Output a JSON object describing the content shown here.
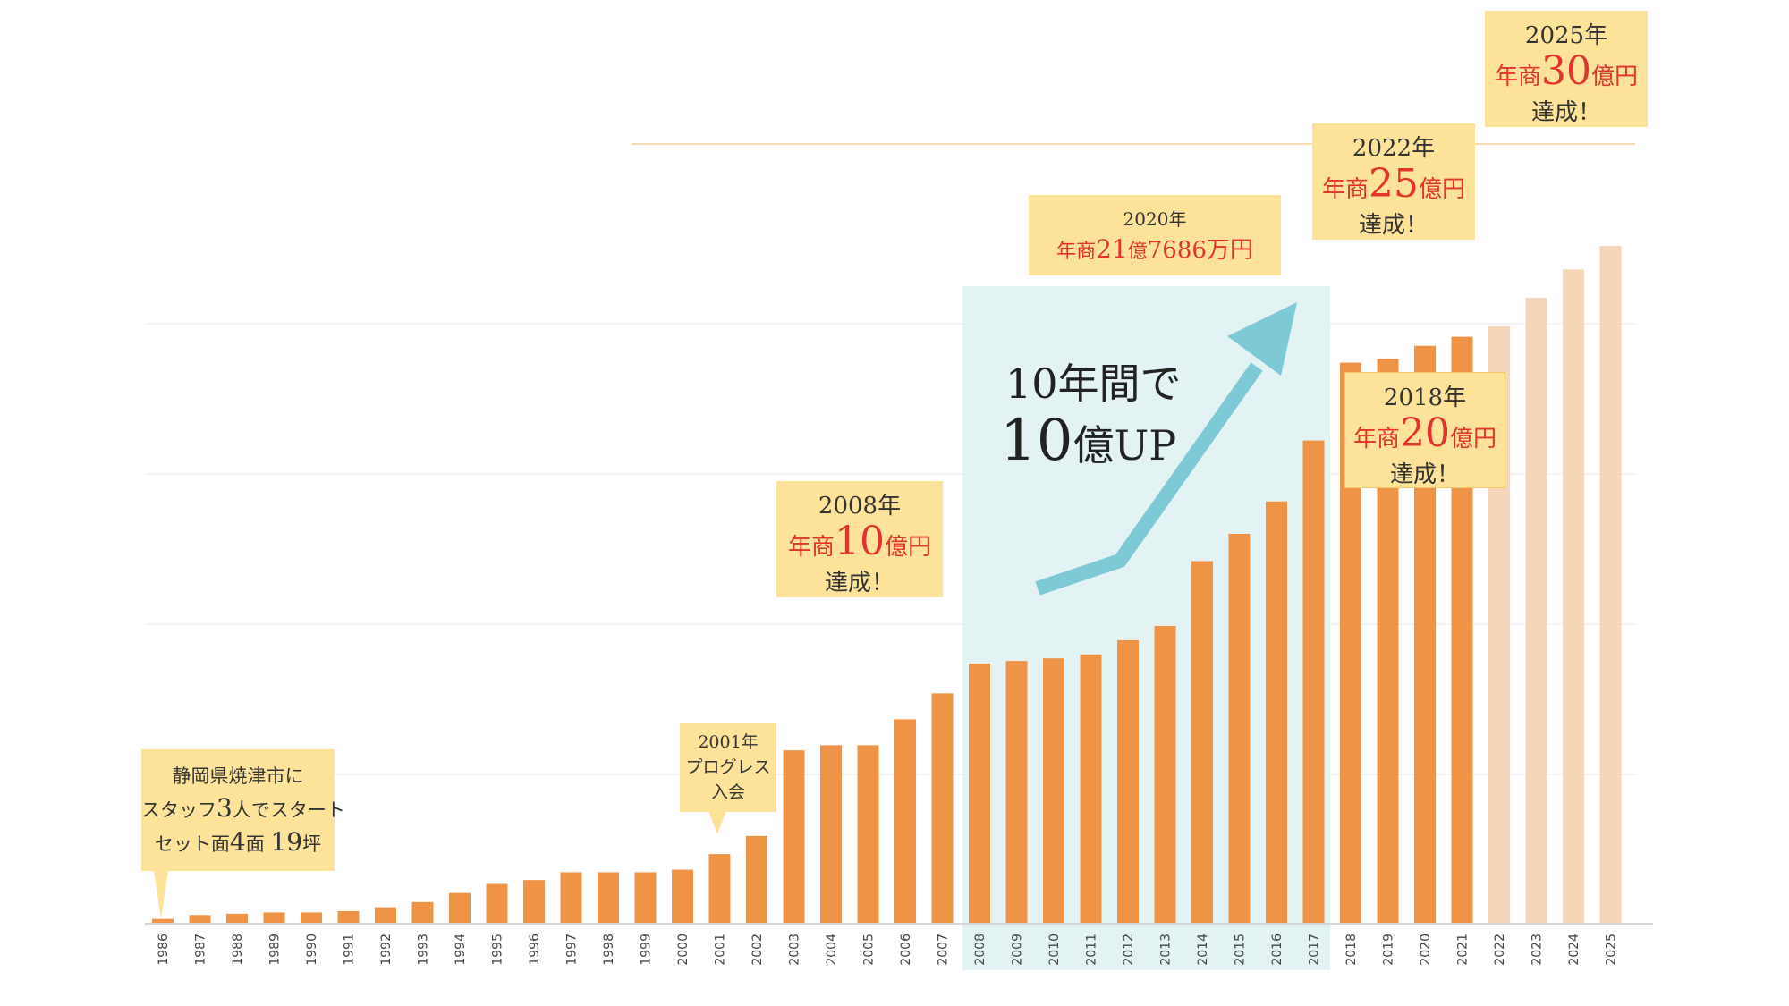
{
  "chart_data": {
    "type": "bar",
    "categories": [
      "1986",
      "1987",
      "1988",
      "1989",
      "1990",
      "1991",
      "1992",
      "1993",
      "1994",
      "1995",
      "1996",
      "1997",
      "1998",
      "1999",
      "2000",
      "2001",
      "2002",
      "2003",
      "2004",
      "2005",
      "2006",
      "2007",
      "2008",
      "2009",
      "2010",
      "2011",
      "2012",
      "2013",
      "2014",
      "2015",
      "2016",
      "2017",
      "2018",
      "2019",
      "2020",
      "2021",
      "2022",
      "2023",
      "2024",
      "2025"
    ],
    "values": [
      0.3,
      0.6,
      0.7,
      0.8,
      0.8,
      0.9,
      1.2,
      1.6,
      2.3,
      3.0,
      3.3,
      3.9,
      3.9,
      3.9,
      4.1,
      5.3,
      6.7,
      13.3,
      13.7,
      13.7,
      15.7,
      17.7,
      20.0,
      20.2,
      20.4,
      20.7,
      21.8,
      22.9,
      27.9,
      30.0,
      32.5,
      37.2,
      43.2,
      43.5,
      44.5,
      45.2,
      46.0,
      48.2,
      50.4,
      52.2
    ],
    "projected_from_index": 36,
    "highlight_range": [
      "2008",
      "2017"
    ],
    "colors": {
      "bar": "#ef9447",
      "bar_projected": "#f5d6b8",
      "highlight": "#e3f3f4",
      "arrow": "#7ec9d6",
      "callout": "#fde39a",
      "accent_text": "#e2342b",
      "grid": "#e8e8e8",
      "target_line": "#f2d29a"
    },
    "grid": true
  },
  "highlight_text": {
    "line1": "10年間で",
    "line2_num": "10",
    "line2_rest": "億UP"
  },
  "callouts": {
    "start": {
      "line1": "静岡県焼津市に",
      "line2_a": "スタッフ",
      "line2_num": "3",
      "line2_b": "人でスタート",
      "line3_a": "セット面",
      "line3_num": "4",
      "line3_b": "面 ",
      "line3_num2": "19",
      "line3_c": "坪"
    },
    "y2001": {
      "line1": "2001年",
      "line2": "プログレス",
      "line3": "入会"
    },
    "y2008": {
      "line1": "2008年",
      "line2_a": "年商",
      "line2_num": "10",
      "line2_b": "億円",
      "line3": "達成！"
    },
    "y2018": {
      "line1": "2018年",
      "line2_a": "年商",
      "line2_num": "20",
      "line2_b": "億円",
      "line3": "達成！"
    },
    "y2020": {
      "line1": "2020年",
      "line2_a": "年商",
      "line2_num": "21",
      "line2_b": "億",
      "line2_c": "7686万円"
    },
    "y2022": {
      "line1": "2022年",
      "line2_a": "年商",
      "line2_num": "25",
      "line2_b": "億円",
      "line3": "達成！"
    },
    "y2025": {
      "line1": "2025年",
      "line2_a": "年商",
      "line2_num": "30",
      "line2_b": "億円",
      "line3": "達成！"
    }
  }
}
